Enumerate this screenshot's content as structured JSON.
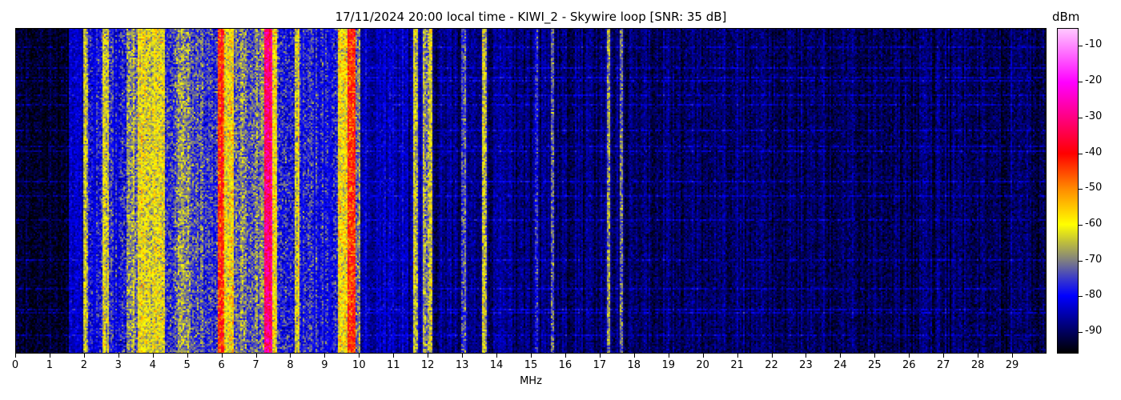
{
  "chart_data": {
    "type": "heatmap",
    "title": "17/11/2024 20:00 local time - KIWI_2 - Skywire loop [SNR: 35 dB]",
    "xlabel": "MHz",
    "ylabel": "",
    "xlim": [
      0,
      30
    ],
    "x_ticks": [
      "0",
      "1",
      "2",
      "3",
      "4",
      "5",
      "6",
      "7",
      "8",
      "9",
      "10",
      "11",
      "12",
      "13",
      "14",
      "15",
      "16",
      "17",
      "18",
      "19",
      "20",
      "21",
      "22",
      "23",
      "24",
      "25",
      "26",
      "27",
      "28",
      "29"
    ],
    "colorbar": {
      "label": "dBm",
      "range": [
        -96,
        -5
      ],
      "ticks": [
        "-10",
        "-20",
        "-30",
        "-40",
        "-50",
        "-60",
        "-70",
        "-80",
        "-90"
      ],
      "colormap_stops": [
        {
          "dBm": -96,
          "color": "#000000"
        },
        {
          "dBm": -88,
          "color": "#000080"
        },
        {
          "dBm": -80,
          "color": "#0000ff"
        },
        {
          "dBm": -75,
          "color": "#3c3cc8"
        },
        {
          "dBm": -70,
          "color": "#808080"
        },
        {
          "dBm": -65,
          "color": "#bebe3c"
        },
        {
          "dBm": -60,
          "color": "#ffff00"
        },
        {
          "dBm": -50,
          "color": "#ff8c00"
        },
        {
          "dBm": -40,
          "color": "#ff0000"
        },
        {
          "dBm": -30,
          "color": "#ff0080"
        },
        {
          "dBm": -20,
          "color": "#ff00ff"
        },
        {
          "dBm": -5,
          "color": "#ffc8ff"
        }
      ]
    },
    "bands_mhz_dbm": [
      {
        "from": 0.0,
        "to": 1.5,
        "dBm": -93
      },
      {
        "from": 1.5,
        "to": 1.95,
        "dBm": -84
      },
      {
        "from": 1.95,
        "to": 2.05,
        "dBm": -66
      },
      {
        "from": 2.05,
        "to": 2.5,
        "dBm": -80
      },
      {
        "from": 2.5,
        "to": 2.7,
        "dBm": -65
      },
      {
        "from": 2.7,
        "to": 3.2,
        "dBm": -77
      },
      {
        "from": 3.2,
        "to": 3.5,
        "dBm": -70
      },
      {
        "from": 3.5,
        "to": 4.3,
        "dBm": -62
      },
      {
        "from": 4.3,
        "to": 4.7,
        "dBm": -74
      },
      {
        "from": 4.7,
        "to": 5.0,
        "dBm": -68
      },
      {
        "from": 5.0,
        "to": 5.85,
        "dBm": -75
      },
      {
        "from": 5.85,
        "to": 6.05,
        "dBm": -42
      },
      {
        "from": 6.05,
        "to": 6.3,
        "dBm": -60
      },
      {
        "from": 6.3,
        "to": 7.2,
        "dBm": -72
      },
      {
        "from": 7.2,
        "to": 7.45,
        "dBm": -30
      },
      {
        "from": 7.45,
        "to": 7.55,
        "dBm": -60
      },
      {
        "from": 7.55,
        "to": 8.1,
        "dBm": -78
      },
      {
        "from": 8.1,
        "to": 8.2,
        "dBm": -62
      },
      {
        "from": 8.2,
        "to": 9.35,
        "dBm": -78
      },
      {
        "from": 9.35,
        "to": 9.6,
        "dBm": -60
      },
      {
        "from": 9.6,
        "to": 9.85,
        "dBm": -42
      },
      {
        "from": 9.85,
        "to": 10.0,
        "dBm": -70
      },
      {
        "from": 10.0,
        "to": 11.55,
        "dBm": -85
      },
      {
        "from": 11.55,
        "to": 11.65,
        "dBm": -65
      },
      {
        "from": 11.65,
        "to": 11.8,
        "dBm": -84
      },
      {
        "from": 11.8,
        "to": 12.0,
        "dBm": -68
      },
      {
        "from": 12.0,
        "to": 12.1,
        "dBm": -60
      },
      {
        "from": 12.1,
        "to": 12.95,
        "dBm": -88
      },
      {
        "from": 12.95,
        "to": 13.05,
        "dBm": -72
      },
      {
        "from": 13.05,
        "to": 13.55,
        "dBm": -88
      },
      {
        "from": 13.55,
        "to": 13.65,
        "dBm": -65
      },
      {
        "from": 13.65,
        "to": 15.05,
        "dBm": -88
      },
      {
        "from": 15.05,
        "to": 15.15,
        "dBm": -75
      },
      {
        "from": 15.15,
        "to": 15.55,
        "dBm": -88
      },
      {
        "from": 15.55,
        "to": 15.65,
        "dBm": -72
      },
      {
        "from": 15.65,
        "to": 17.15,
        "dBm": -89
      },
      {
        "from": 17.15,
        "to": 17.25,
        "dBm": -68
      },
      {
        "from": 17.25,
        "to": 17.55,
        "dBm": -89
      },
      {
        "from": 17.55,
        "to": 17.65,
        "dBm": -70
      },
      {
        "from": 17.65,
        "to": 30.0,
        "dBm": -90
      }
    ]
  }
}
